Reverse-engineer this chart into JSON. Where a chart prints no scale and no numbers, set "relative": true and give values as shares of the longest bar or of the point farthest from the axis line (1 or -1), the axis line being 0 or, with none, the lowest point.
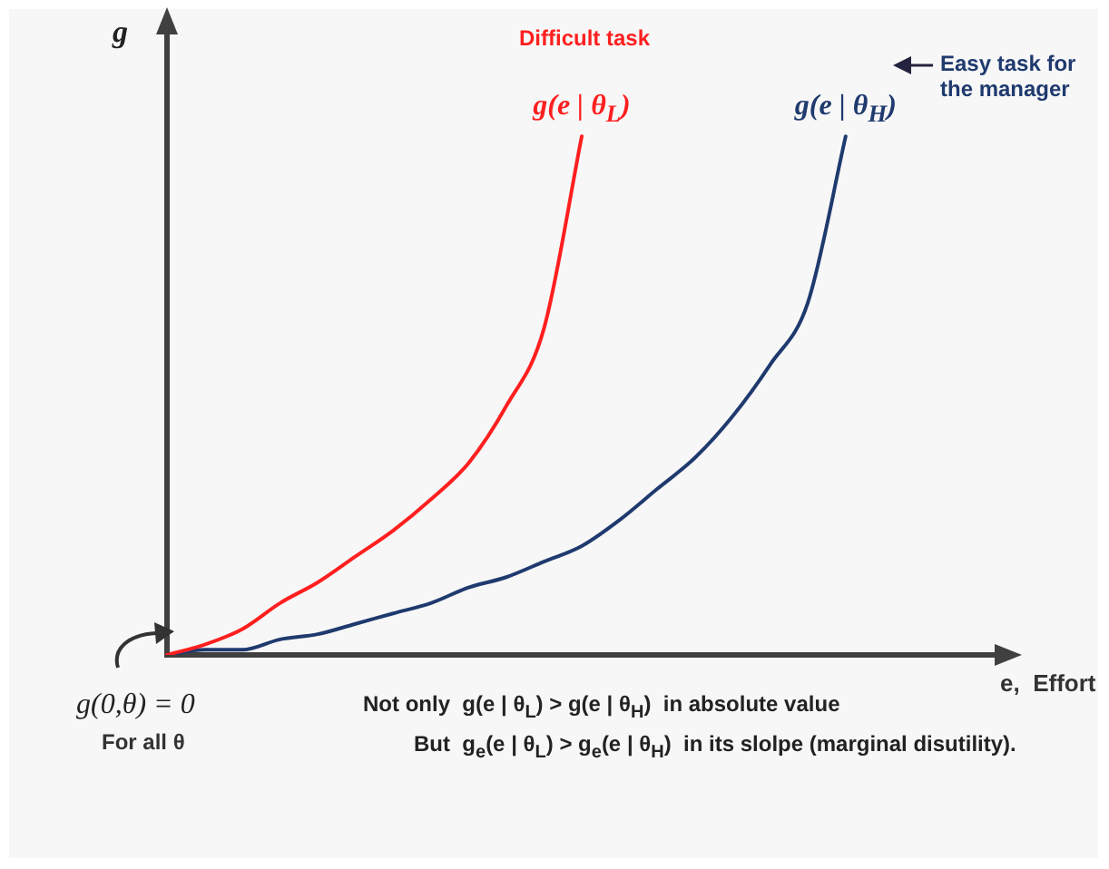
{
  "chart_data": {
    "type": "line",
    "relative": true,
    "xlabel": "e,  Effort",
    "ylabel": "g",
    "categories": [
      null,
      null,
      null,
      null,
      null,
      null,
      null,
      null,
      null,
      null,
      null,
      null,
      null,
      null,
      null,
      null,
      null,
      null,
      null,
      null,
      null,
      null,
      null
    ],
    "series": [
      {
        "name": "g(e | θ$_{L}$)",
        "color": "#ff1f1f",
        "values": [
          0,
          0.02,
          0.05,
          0.1,
          0.14,
          0.19,
          0.24,
          0.3,
          0.37,
          0.48,
          0.63,
          1,
          null,
          null,
          null,
          null,
          null,
          null,
          null,
          null,
          null,
          null,
          null
        ]
      },
      {
        "name": "g(e | θ$_{H}$)",
        "color": "#1f3a6e",
        "values": [
          0,
          0.01,
          0.01,
          0.03,
          0.04,
          0.06,
          0.08,
          0.1,
          0.13,
          0.15,
          0.18,
          0.21,
          0.26,
          0.32,
          0.38,
          0.46,
          0.56,
          0.68,
          1,
          null,
          null,
          null,
          null
        ]
      }
    ],
    "annotations": [
      "Difficult task",
      "Easy task for the manager",
      "g(0,θ) = 0",
      "For all θ",
      "Not only  g(e | θ$_{L}$) > g(e | θ$_{H}$)  in absolute value",
      "But  g$_{e}$(e | θ$_{L}$) > g$_{e}$(e | θ$_{H}$)  in its slolpe (marginal disutility)."
    ],
    "marker": "none",
    "line_style": "solid",
    "grid": false,
    "legend": false
  }
}
